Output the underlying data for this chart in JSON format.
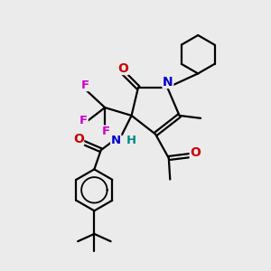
{
  "bg_color": "#ebebeb",
  "atom_colors": {
    "C": "#000000",
    "N": "#0000cc",
    "O": "#cc0000",
    "F": "#cc00cc",
    "H": "#008888"
  },
  "bond_color": "#000000",
  "bond_width": 1.6
}
